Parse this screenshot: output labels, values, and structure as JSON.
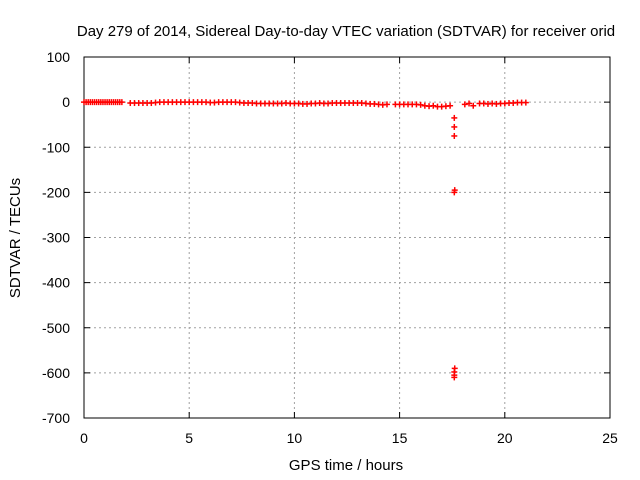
{
  "chart_data": {
    "type": "scatter",
    "title": "Day 279 of 2014, Sidereal Day-to-day VTEC variation (SDTVAR) for receiver orid",
    "xlabel": "GPS time / hours",
    "ylabel": "SDTVAR / TECUs",
    "xlim": [
      0,
      25
    ],
    "ylim": [
      -700,
      100
    ],
    "xticks": [
      0,
      5,
      10,
      15,
      20,
      25
    ],
    "yticks": [
      100,
      0,
      -100,
      -200,
      -300,
      -400,
      -500,
      -600,
      -700
    ],
    "grid": true,
    "marker": "plus",
    "color": "#ff0000",
    "series": [
      {
        "x": [
          0.0,
          0.1,
          0.2,
          0.3,
          0.4,
          0.5,
          0.6,
          0.7,
          0.8,
          0.9,
          1.0,
          1.1,
          1.2,
          1.3,
          1.4,
          1.5,
          1.6,
          1.7,
          1.8,
          2.2,
          2.4,
          2.6,
          2.8,
          3.0,
          3.2,
          3.4,
          3.6,
          3.8,
          4.0,
          4.2,
          4.4,
          4.6,
          4.8,
          5.0,
          5.2,
          5.4,
          5.6,
          5.8,
          6.0,
          6.2,
          6.4,
          6.6,
          6.8,
          7.0,
          7.2,
          7.4,
          7.6,
          7.8,
          8.0,
          8.2,
          8.4,
          8.6,
          8.8,
          9.0,
          9.2,
          9.4,
          9.6,
          9.8,
          10.0,
          10.2,
          10.4,
          10.6,
          10.8,
          11.0,
          11.2,
          11.4,
          11.6,
          11.8,
          12.0,
          12.2,
          12.4,
          12.6,
          12.8,
          13.0,
          13.2,
          13.4,
          13.6,
          13.8,
          14.0,
          14.2,
          14.4,
          14.8,
          15.0,
          15.2,
          15.4,
          15.6,
          15.8,
          16.0,
          16.2,
          16.4,
          16.6,
          16.8,
          17.0,
          17.2,
          17.4,
          17.6,
          17.6,
          17.6,
          17.6,
          17.62,
          17.62,
          17.6,
          17.6,
          17.6,
          18.1,
          18.3,
          18.5,
          18.8,
          19.0,
          19.2,
          19.4,
          19.6,
          19.8,
          20.0,
          20.2,
          20.4,
          20.6,
          20.8,
          21.0
        ],
        "y": [
          0,
          0,
          0,
          0,
          0,
          0,
          0,
          0,
          0,
          0,
          0,
          0,
          0,
          0,
          0,
          0,
          0,
          0,
          0,
          -2,
          -2,
          -2,
          -2,
          -2,
          -2,
          -1,
          0,
          0,
          0,
          0,
          0,
          0,
          0,
          0,
          0,
          0,
          0,
          0,
          -1,
          -1,
          0,
          0,
          0,
          0,
          0,
          -1,
          -2,
          -2,
          -2,
          -3,
          -3,
          -3,
          -3,
          -3,
          -3,
          -3,
          -2,
          -3,
          -3,
          -3,
          -4,
          -4,
          -3,
          -3,
          -2,
          -3,
          -3,
          -2,
          -2,
          -2,
          -2,
          -2,
          -2,
          -2,
          -2,
          -3,
          -4,
          -4,
          -5,
          -6,
          -5,
          -5,
          -5,
          -5,
          -5,
          -5,
          -5,
          -6,
          -8,
          -9,
          -8,
          -10,
          -10,
          -9,
          -8,
          -35,
          -55,
          -75,
          -200,
          -195,
          -590,
          -598,
          -605,
          -610,
          -5,
          -3,
          -8,
          -3,
          -3,
          -4,
          -3,
          -4,
          -3,
          -3,
          -2,
          -2,
          -1,
          -1,
          -1
        ]
      }
    ]
  }
}
